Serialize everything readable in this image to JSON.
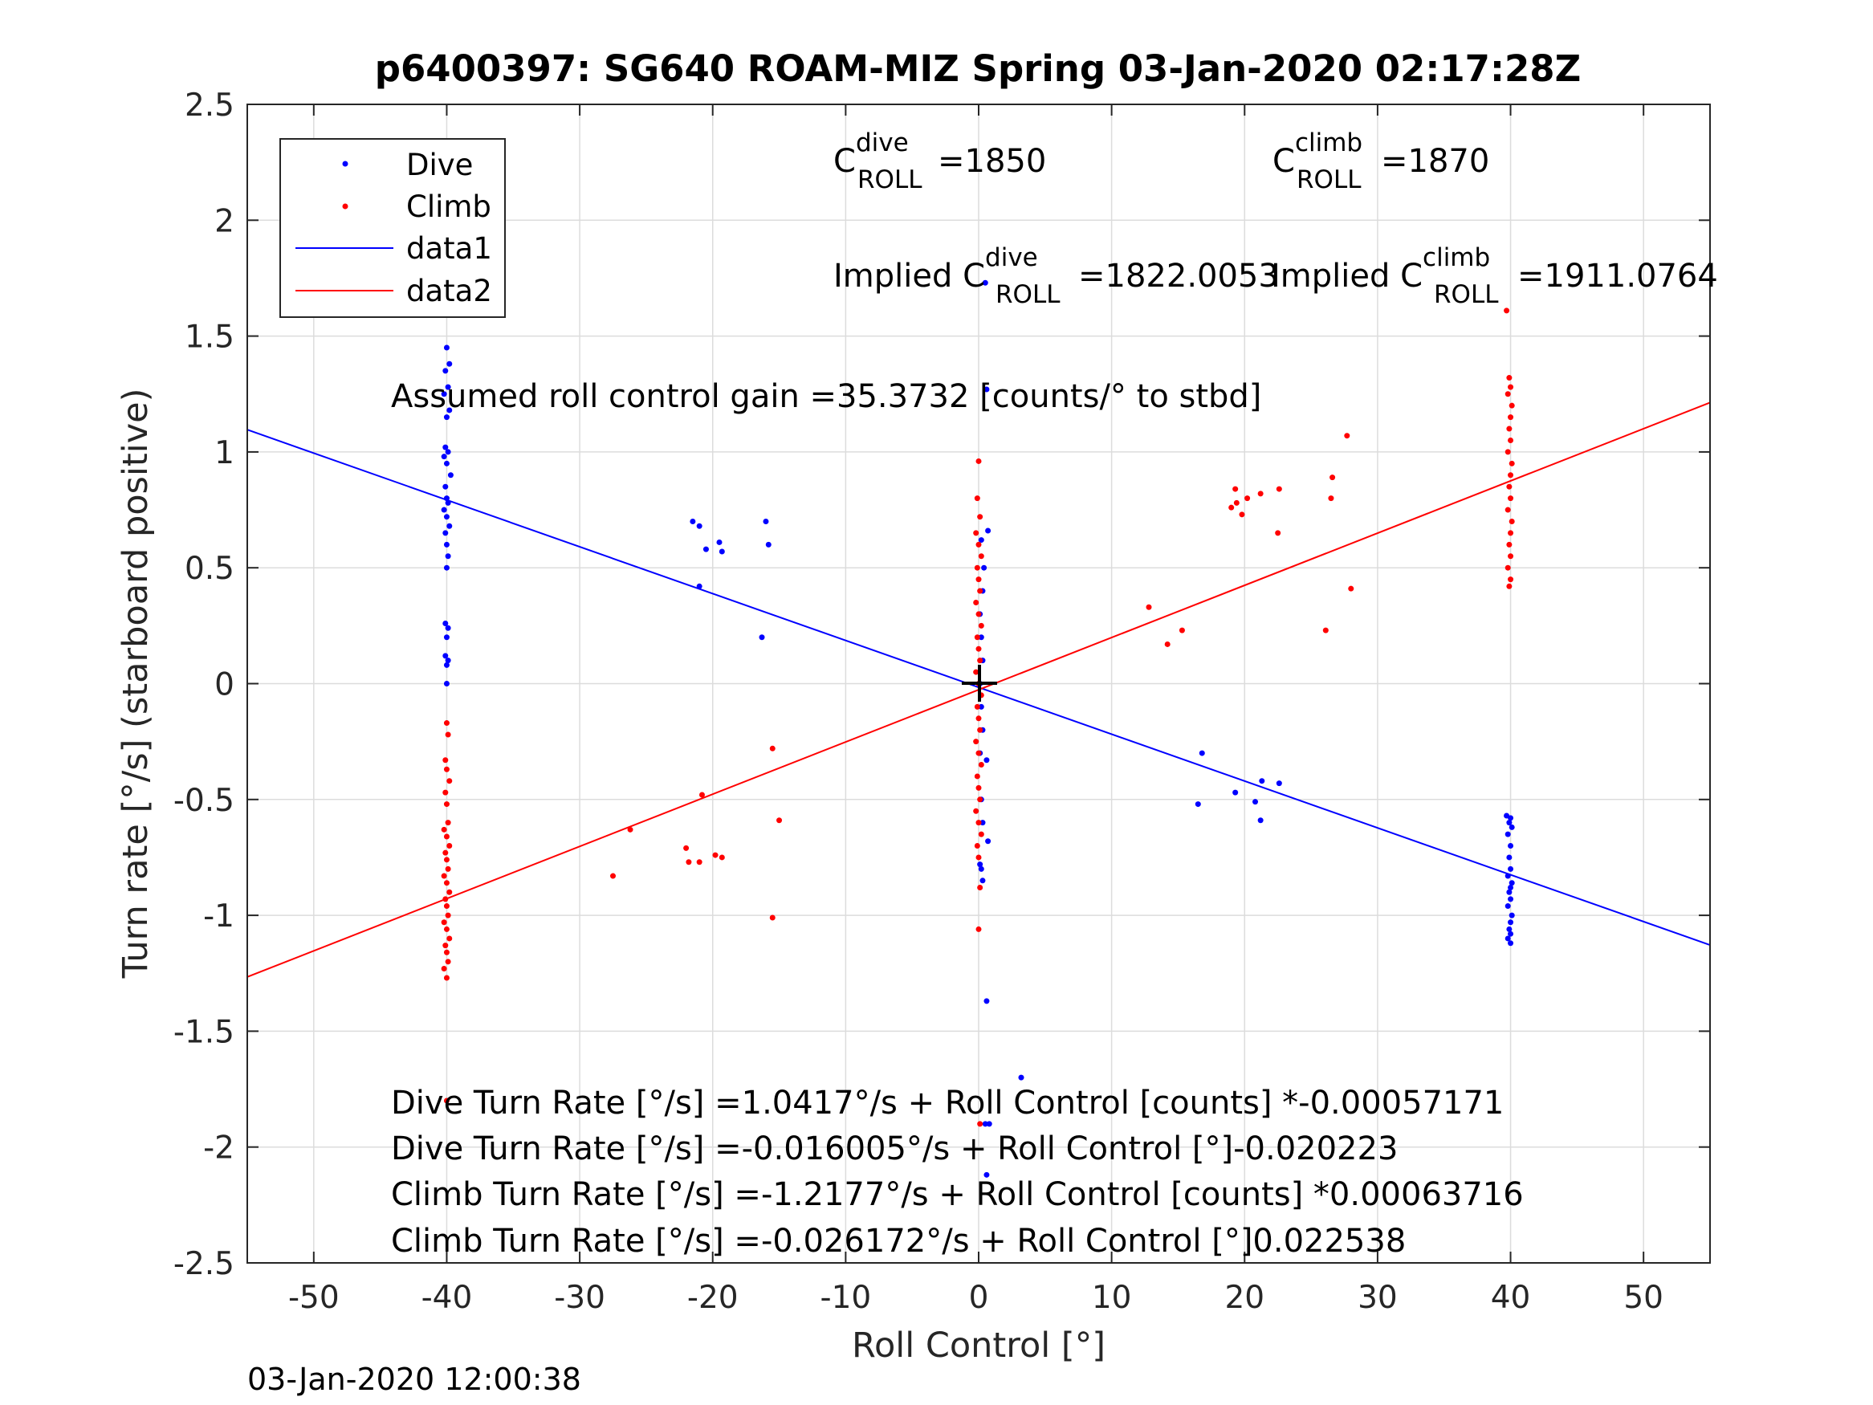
{
  "chart_data": {
    "type": "scatter",
    "title": "p6400397: SG640 ROAM-MIZ Spring 03-Jan-2020 02:17:28Z",
    "xlabel": "Roll Control [°]",
    "ylabel": "Turn rate [°/s] (starboard positive)",
    "xlim": [
      -55,
      55
    ],
    "ylim": [
      -2.5,
      2.5
    ],
    "grid": true,
    "legend_position": "top-left",
    "x_ticks": [
      -50,
      -40,
      -30,
      -20,
      -10,
      0,
      10,
      20,
      30,
      40,
      50
    ],
    "x_tick_labels": [
      "-50",
      "-40",
      "-30",
      "-20",
      "-10",
      "0",
      "10",
      "20",
      "30",
      "40",
      "50"
    ],
    "y_ticks": [
      2.5,
      2,
      1.5,
      1,
      0.5,
      0,
      -0.5,
      -1,
      -1.5,
      -2,
      -2.5
    ],
    "y_tick_labels": [
      "2.5",
      "2",
      "1.5",
      "1",
      "0.5",
      "0",
      "-0.5",
      "-1",
      "-1.5",
      "-2",
      "-2.5"
    ],
    "colors": {
      "dive": "#0000ff",
      "climb": "#ff0000",
      "axes": "#262626",
      "grid": "#dcdcdc"
    },
    "series": [
      {
        "name": "Dive",
        "kind": "points",
        "color": "#0000ff",
        "points": [
          [
            -40.0,
            1.45
          ],
          [
            -39.8,
            1.38
          ],
          [
            -40.1,
            1.35
          ],
          [
            -39.9,
            1.28
          ],
          [
            -40.2,
            1.25
          ],
          [
            -39.8,
            1.18
          ],
          [
            -40.0,
            1.15
          ],
          [
            -40.1,
            1.02
          ],
          [
            -39.9,
            1.0
          ],
          [
            -40.2,
            0.98
          ],
          [
            -40.0,
            0.95
          ],
          [
            -39.7,
            0.9
          ],
          [
            -40.1,
            0.85
          ],
          [
            -40.0,
            0.8
          ],
          [
            -39.9,
            0.78
          ],
          [
            -40.2,
            0.75
          ],
          [
            -40.0,
            0.72
          ],
          [
            -39.8,
            0.68
          ],
          [
            -40.1,
            0.65
          ],
          [
            -40.0,
            0.6
          ],
          [
            -39.9,
            0.55
          ],
          [
            -40.0,
            0.5
          ],
          [
            -40.1,
            0.26
          ],
          [
            -39.9,
            0.24
          ],
          [
            -40.0,
            0.2
          ],
          [
            -40.1,
            0.12
          ],
          [
            -39.9,
            0.1
          ],
          [
            -40.0,
            0.08
          ],
          [
            -40.0,
            0.0
          ],
          [
            -21.5,
            0.7
          ],
          [
            -21.0,
            0.68
          ],
          [
            -20.5,
            0.58
          ],
          [
            -19.5,
            0.61
          ],
          [
            -19.3,
            0.57
          ],
          [
            -16.0,
            0.7
          ],
          [
            -15.8,
            0.6
          ],
          [
            -21.0,
            0.42
          ],
          [
            -16.3,
            0.2
          ],
          [
            0.5,
            1.73
          ],
          [
            0.6,
            1.27
          ],
          [
            0.7,
            0.66
          ],
          [
            0.2,
            0.62
          ],
          [
            0.4,
            0.5
          ],
          [
            0.3,
            0.4
          ],
          [
            0.1,
            0.3
          ],
          [
            0.2,
            0.2
          ],
          [
            0.3,
            0.1
          ],
          [
            0.1,
            0.0
          ],
          [
            0.2,
            -0.1
          ],
          [
            0.3,
            -0.2
          ],
          [
            0.1,
            -0.3
          ],
          [
            0.6,
            -0.33
          ],
          [
            0.2,
            -0.5
          ],
          [
            0.3,
            -0.6
          ],
          [
            0.7,
            -0.68
          ],
          [
            0.1,
            -0.78
          ],
          [
            0.2,
            -0.8
          ],
          [
            0.3,
            -0.85
          ],
          [
            0.6,
            -1.37
          ],
          [
            0.5,
            -1.9
          ],
          [
            0.8,
            -1.9
          ],
          [
            0.6,
            -2.12
          ],
          [
            3.2,
            -1.7
          ],
          [
            16.8,
            -0.3
          ],
          [
            16.5,
            -0.52
          ],
          [
            19.3,
            -0.47
          ],
          [
            20.8,
            -0.51
          ],
          [
            21.2,
            -0.59
          ],
          [
            21.3,
            -0.42
          ],
          [
            22.6,
            -0.43
          ],
          [
            39.7,
            -0.57
          ],
          [
            40.0,
            -0.58
          ],
          [
            39.9,
            -0.6
          ],
          [
            40.1,
            -0.62
          ],
          [
            39.8,
            -0.65
          ],
          [
            40.0,
            -0.7
          ],
          [
            39.9,
            -0.75
          ],
          [
            40.0,
            -0.8
          ],
          [
            39.8,
            -0.83
          ],
          [
            40.1,
            -0.86
          ],
          [
            40.0,
            -0.88
          ],
          [
            39.9,
            -0.9
          ],
          [
            40.0,
            -0.93
          ],
          [
            39.8,
            -0.96
          ],
          [
            40.1,
            -1.0
          ],
          [
            40.0,
            -1.03
          ],
          [
            39.9,
            -1.06
          ],
          [
            40.0,
            -1.08
          ],
          [
            39.8,
            -1.1
          ],
          [
            40.0,
            -1.12
          ]
        ]
      },
      {
        "name": "Climb",
        "kind": "points",
        "color": "#ff0000",
        "points": [
          [
            -40.0,
            -0.17
          ],
          [
            -39.9,
            -0.22
          ],
          [
            -40.1,
            -0.33
          ],
          [
            -40.0,
            -0.37
          ],
          [
            -39.8,
            -0.42
          ],
          [
            -40.1,
            -0.47
          ],
          [
            -40.0,
            -0.52
          ],
          [
            -39.9,
            -0.6
          ],
          [
            -40.2,
            -0.63
          ],
          [
            -40.0,
            -0.66
          ],
          [
            -39.8,
            -0.7
          ],
          [
            -40.1,
            -0.73
          ],
          [
            -40.0,
            -0.76
          ],
          [
            -39.9,
            -0.8
          ],
          [
            -40.2,
            -0.83
          ],
          [
            -40.0,
            -0.86
          ],
          [
            -39.8,
            -0.9
          ],
          [
            -40.1,
            -0.93
          ],
          [
            -40.0,
            -0.96
          ],
          [
            -39.9,
            -1.0
          ],
          [
            -40.2,
            -1.03
          ],
          [
            -40.0,
            -1.06
          ],
          [
            -39.8,
            -1.1
          ],
          [
            -40.1,
            -1.13
          ],
          [
            -40.0,
            -1.16
          ],
          [
            -39.9,
            -1.2
          ],
          [
            -40.2,
            -1.23
          ],
          [
            -40.0,
            -1.27
          ],
          [
            -40.0,
            -1.8
          ],
          [
            -27.5,
            -0.83
          ],
          [
            -26.2,
            -0.63
          ],
          [
            -22.0,
            -0.71
          ],
          [
            -21.8,
            -0.77
          ],
          [
            -21.0,
            -0.77
          ],
          [
            -20.8,
            -0.48
          ],
          [
            -19.8,
            -0.74
          ],
          [
            -19.3,
            -0.75
          ],
          [
            -15.5,
            -0.28
          ],
          [
            -15.0,
            -0.59
          ],
          [
            -15.5,
            -1.01
          ],
          [
            0.0,
            0.96
          ],
          [
            -0.1,
            0.8
          ],
          [
            0.1,
            0.72
          ],
          [
            -0.2,
            0.65
          ],
          [
            0.0,
            0.6
          ],
          [
            0.2,
            0.55
          ],
          [
            -0.1,
            0.5
          ],
          [
            0.0,
            0.45
          ],
          [
            0.1,
            0.4
          ],
          [
            -0.2,
            0.35
          ],
          [
            0.0,
            0.3
          ],
          [
            0.2,
            0.25
          ],
          [
            -0.1,
            0.2
          ],
          [
            0.0,
            0.15
          ],
          [
            0.1,
            0.1
          ],
          [
            -0.2,
            0.05
          ],
          [
            0.0,
            0.0
          ],
          [
            0.2,
            -0.05
          ],
          [
            -0.1,
            -0.1
          ],
          [
            0.0,
            -0.15
          ],
          [
            0.1,
            -0.2
          ],
          [
            -0.2,
            -0.25
          ],
          [
            0.0,
            -0.3
          ],
          [
            0.2,
            -0.35
          ],
          [
            -0.1,
            -0.4
          ],
          [
            0.0,
            -0.45
          ],
          [
            0.1,
            -0.5
          ],
          [
            -0.2,
            -0.55
          ],
          [
            0.0,
            -0.6
          ],
          [
            0.2,
            -0.65
          ],
          [
            -0.1,
            -0.7
          ],
          [
            0.0,
            -0.75
          ],
          [
            0.1,
            -0.88
          ],
          [
            0.0,
            -1.06
          ],
          [
            0.1,
            -1.9
          ],
          [
            12.8,
            0.33
          ],
          [
            14.2,
            0.17
          ],
          [
            15.3,
            0.23
          ],
          [
            19.0,
            0.76
          ],
          [
            19.3,
            0.84
          ],
          [
            19.4,
            0.78
          ],
          [
            19.8,
            0.73
          ],
          [
            20.2,
            0.8
          ],
          [
            21.2,
            0.82
          ],
          [
            22.6,
            0.84
          ],
          [
            22.5,
            0.65
          ],
          [
            26.1,
            0.23
          ],
          [
            26.6,
            0.89
          ],
          [
            26.5,
            0.8
          ],
          [
            27.7,
            1.07
          ],
          [
            28.0,
            0.41
          ],
          [
            39.7,
            1.61
          ],
          [
            39.9,
            1.32
          ],
          [
            40.0,
            1.28
          ],
          [
            39.8,
            1.25
          ],
          [
            40.1,
            1.2
          ],
          [
            40.0,
            1.15
          ],
          [
            39.9,
            1.1
          ],
          [
            40.0,
            1.05
          ],
          [
            39.8,
            1.0
          ],
          [
            40.1,
            0.95
          ],
          [
            40.0,
            0.9
          ],
          [
            39.9,
            0.85
          ],
          [
            40.0,
            0.8
          ],
          [
            39.8,
            0.75
          ],
          [
            40.1,
            0.7
          ],
          [
            40.0,
            0.65
          ],
          [
            39.9,
            0.6
          ],
          [
            40.0,
            0.55
          ],
          [
            39.8,
            0.5
          ],
          [
            40.0,
            0.45
          ],
          [
            39.9,
            0.42
          ]
        ]
      },
      {
        "name": "data1",
        "kind": "line",
        "color": "#0000ff",
        "x": [
          -55,
          55
        ],
        "y": [
          1.096,
          -1.128
        ]
      },
      {
        "name": "data2",
        "kind": "line",
        "color": "#ff0000",
        "x": [
          -55,
          55
        ],
        "y": [
          -1.266,
          1.213
        ]
      }
    ],
    "annotations": {
      "c_dive": {
        "base": "C",
        "sup": "dive",
        "sub": "ROLL",
        "value": "=1850"
      },
      "c_climb": {
        "base": "C",
        "sup": "climb",
        "sub": "ROLL",
        "value": "=1870"
      },
      "implied_dive": {
        "base": "Implied C",
        "sup": "dive",
        "sub": "ROLL",
        "value": "=1822.0053"
      },
      "implied_climb": {
        "base": "Implied C",
        "sup": "climb",
        "sub": "ROLL",
        "value": "=1911.0764"
      },
      "gain": "Assumed roll control gain =35.3732 [counts/° to stbd]",
      "equations": [
        "Dive Turn Rate [°/s] =1.0417°/s + Roll Control [counts] *-0.00057171",
        "Dive Turn Rate [°/s] =-0.016005°/s + Roll Control [°]-0.020223",
        "Climb Turn Rate [°/s] =-1.2177°/s + Roll Control [counts] *0.00063716",
        "Climb Turn Rate [°/s] =-0.026172°/s + Roll Control [°]0.022538"
      ]
    },
    "timestamp": "03-Jan-2020 12:00:38"
  }
}
